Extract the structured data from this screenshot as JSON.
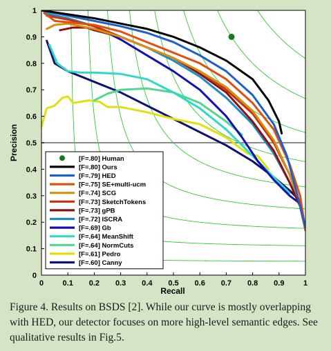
{
  "chart_data": {
    "type": "line",
    "xlabel": "Recall",
    "ylabel": "Precision",
    "xlim": [
      0,
      1
    ],
    "ylim": [
      0,
      1
    ],
    "x_ticks": [
      "0",
      "0.1",
      "0.2",
      "0.3",
      "0.4",
      "0.5",
      "0.6",
      "0.7",
      "0.8",
      "0.9",
      "1"
    ],
    "y_ticks": [
      "0",
      "0.1",
      "0.2",
      "0.3",
      "0.4",
      "0.5",
      "0.6",
      "0.7",
      "0.8",
      "0.9",
      "1"
    ],
    "reference_line_y": 0.5,
    "iso_f_lines": [
      0.1,
      0.2,
      0.3,
      0.4,
      0.5,
      0.6,
      0.7,
      0.8,
      0.9
    ],
    "legend_position": "bottom-left",
    "human_point": {
      "name": "[F=.80] Human",
      "x": 0.72,
      "y": 0.9,
      "color": "#1a7a1a"
    },
    "series": [
      {
        "name": "[F=.80] Ours",
        "color": "#000000",
        "points": [
          [
            0,
            1
          ],
          [
            0.1,
            0.985
          ],
          [
            0.2,
            0.97
          ],
          [
            0.3,
            0.95
          ],
          [
            0.4,
            0.93
          ],
          [
            0.5,
            0.9
          ],
          [
            0.6,
            0.86
          ],
          [
            0.7,
            0.81
          ],
          [
            0.8,
            0.74
          ],
          [
            0.86,
            0.66
          ],
          [
            0.9,
            0.58
          ],
          [
            0.91,
            0.535
          ]
        ]
      },
      {
        "name": "[F=.79] HED",
        "color": "#1f5fc8",
        "points": [
          [
            0,
            1
          ],
          [
            0.1,
            0.98
          ],
          [
            0.2,
            0.96
          ],
          [
            0.3,
            0.94
          ],
          [
            0.4,
            0.915
          ],
          [
            0.5,
            0.88
          ],
          [
            0.6,
            0.83
          ],
          [
            0.7,
            0.77
          ],
          [
            0.8,
            0.68
          ],
          [
            0.88,
            0.57
          ],
          [
            0.93,
            0.45
          ],
          [
            0.97,
            0.3
          ],
          [
            1,
            0.18
          ]
        ]
      },
      {
        "name": "[F=.75] SE+multi-ucm",
        "color": "#e05010",
        "points": [
          [
            0.01,
            0.99
          ],
          [
            0.05,
            0.96
          ],
          [
            0.1,
            0.955
          ],
          [
            0.2,
            0.945
          ],
          [
            0.3,
            0.92
          ],
          [
            0.4,
            0.88
          ],
          [
            0.5,
            0.84
          ],
          [
            0.6,
            0.8
          ],
          [
            0.7,
            0.74
          ],
          [
            0.8,
            0.65
          ],
          [
            0.88,
            0.55
          ],
          [
            0.94,
            0.42
          ],
          [
            0.98,
            0.3
          ],
          [
            1,
            0.17
          ]
        ]
      },
      {
        "name": "[F=.74] SCG",
        "color": "#d49010",
        "points": [
          [
            0.02,
            0.93
          ],
          [
            0.05,
            0.945
          ],
          [
            0.1,
            0.95
          ],
          [
            0.2,
            0.93
          ],
          [
            0.3,
            0.9
          ],
          [
            0.4,
            0.86
          ],
          [
            0.5,
            0.82
          ],
          [
            0.6,
            0.77
          ],
          [
            0.7,
            0.71
          ],
          [
            0.8,
            0.62
          ],
          [
            0.88,
            0.51
          ],
          [
            0.94,
            0.38
          ],
          [
            0.98,
            0.27
          ],
          [
            1,
            0.17
          ]
        ]
      },
      {
        "name": "[F=.73] SketchTokens",
        "color": "#c83010",
        "points": [
          [
            0.02,
            0.98
          ],
          [
            0.1,
            0.965
          ],
          [
            0.2,
            0.94
          ],
          [
            0.3,
            0.9
          ],
          [
            0.4,
            0.86
          ],
          [
            0.5,
            0.82
          ],
          [
            0.6,
            0.77
          ],
          [
            0.7,
            0.7
          ],
          [
            0.8,
            0.61
          ],
          [
            0.88,
            0.5
          ],
          [
            0.94,
            0.38
          ],
          [
            0.98,
            0.27
          ],
          [
            1,
            0.17
          ]
        ]
      },
      {
        "name": "[F=.73] gPB",
        "color": "#8c1010",
        "points": [
          [
            0.07,
            0.925
          ],
          [
            0.12,
            0.935
          ],
          [
            0.17,
            0.935
          ],
          [
            0.2,
            0.925
          ],
          [
            0.3,
            0.9
          ],
          [
            0.4,
            0.86
          ],
          [
            0.5,
            0.82
          ],
          [
            0.6,
            0.76
          ],
          [
            0.7,
            0.69
          ],
          [
            0.8,
            0.58
          ],
          [
            0.88,
            0.47
          ],
          [
            0.94,
            0.35
          ],
          [
            0.98,
            0.26
          ],
          [
            1,
            0.17
          ]
        ]
      },
      {
        "name": "[F=.72] ISCRA",
        "color": "#1a8cc8",
        "points": [
          [
            0.01,
            0.99
          ],
          [
            0.1,
            0.97
          ],
          [
            0.2,
            0.94
          ],
          [
            0.3,
            0.9
          ],
          [
            0.4,
            0.86
          ],
          [
            0.5,
            0.81
          ],
          [
            0.6,
            0.75
          ],
          [
            0.7,
            0.67
          ],
          [
            0.8,
            0.57
          ],
          [
            0.88,
            0.46
          ],
          [
            0.94,
            0.35
          ],
          [
            0.98,
            0.26
          ],
          [
            1,
            0.17
          ]
        ]
      },
      {
        "name": "[F=.69] Gb",
        "color": "#1010b0",
        "points": [
          [
            0.02,
            0.985
          ],
          [
            0.1,
            0.97
          ],
          [
            0.2,
            0.94
          ],
          [
            0.3,
            0.89
          ],
          [
            0.4,
            0.83
          ],
          [
            0.5,
            0.77
          ],
          [
            0.6,
            0.7
          ],
          [
            0.7,
            0.6
          ],
          [
            0.76,
            0.52
          ],
          [
            0.82,
            0.43
          ],
          [
            0.88,
            0.36
          ],
          [
            0.94,
            0.3
          ],
          [
            0.98,
            0.27
          ]
        ]
      },
      {
        "name": "[F=.64] MeanShift",
        "color": "#30d8c8",
        "points": [
          [
            0.03,
            0.87
          ],
          [
            0.06,
            0.8
          ],
          [
            0.1,
            0.77
          ],
          [
            0.15,
            0.765
          ],
          [
            0.2,
            0.765
          ],
          [
            0.3,
            0.76
          ],
          [
            0.4,
            0.74
          ],
          [
            0.5,
            0.69
          ],
          [
            0.6,
            0.63
          ],
          [
            0.7,
            0.55
          ],
          [
            0.8,
            0.45
          ],
          [
            0.88,
            0.37
          ],
          [
            0.94,
            0.31
          ]
        ]
      },
      {
        "name": "[F=.64] NormCuts",
        "color": "#50d890",
        "points": [
          [
            0.2,
            0.66
          ],
          [
            0.25,
            0.685
          ],
          [
            0.3,
            0.7
          ],
          [
            0.4,
            0.705
          ],
          [
            0.5,
            0.69
          ],
          [
            0.6,
            0.65
          ],
          [
            0.7,
            0.58
          ],
          [
            0.76,
            0.53
          ]
        ]
      },
      {
        "name": "[F=.61] Pedro",
        "color": "#e0e010",
        "points": [
          [
            0,
            0.56
          ],
          [
            0.02,
            0.63
          ],
          [
            0.05,
            0.64
          ],
          [
            0.08,
            0.67
          ],
          [
            0.1,
            0.675
          ],
          [
            0.12,
            0.65
          ],
          [
            0.15,
            0.655
          ],
          [
            0.18,
            0.66
          ],
          [
            0.22,
            0.655
          ],
          [
            0.25,
            0.635
          ],
          [
            0.3,
            0.635
          ],
          [
            0.4,
            0.615
          ],
          [
            0.5,
            0.59
          ],
          [
            0.6,
            0.57
          ],
          [
            0.7,
            0.52
          ],
          [
            0.78,
            0.46
          ],
          [
            0.82,
            0.45
          ],
          [
            0.86,
            0.4
          ]
        ]
      },
      {
        "name": "[F=.60] Canny",
        "color": "#101070",
        "points": [
          [
            0.02,
            0.885
          ],
          [
            0.05,
            0.8
          ],
          [
            0.1,
            0.77
          ],
          [
            0.2,
            0.73
          ],
          [
            0.3,
            0.69
          ],
          [
            0.4,
            0.64
          ],
          [
            0.5,
            0.59
          ],
          [
            0.6,
            0.54
          ],
          [
            0.7,
            0.49
          ],
          [
            0.8,
            0.43
          ],
          [
            0.88,
            0.37
          ],
          [
            0.94,
            0.32
          ],
          [
            0.98,
            0.28
          ],
          [
            1,
            0.17
          ]
        ]
      }
    ]
  },
  "caption": "Figure 4. Results on BSDS [2]. While our curve is mostly overlapping with HED, our detector focuses on more high-level semantic edges. See qualitative results in Fig.5."
}
